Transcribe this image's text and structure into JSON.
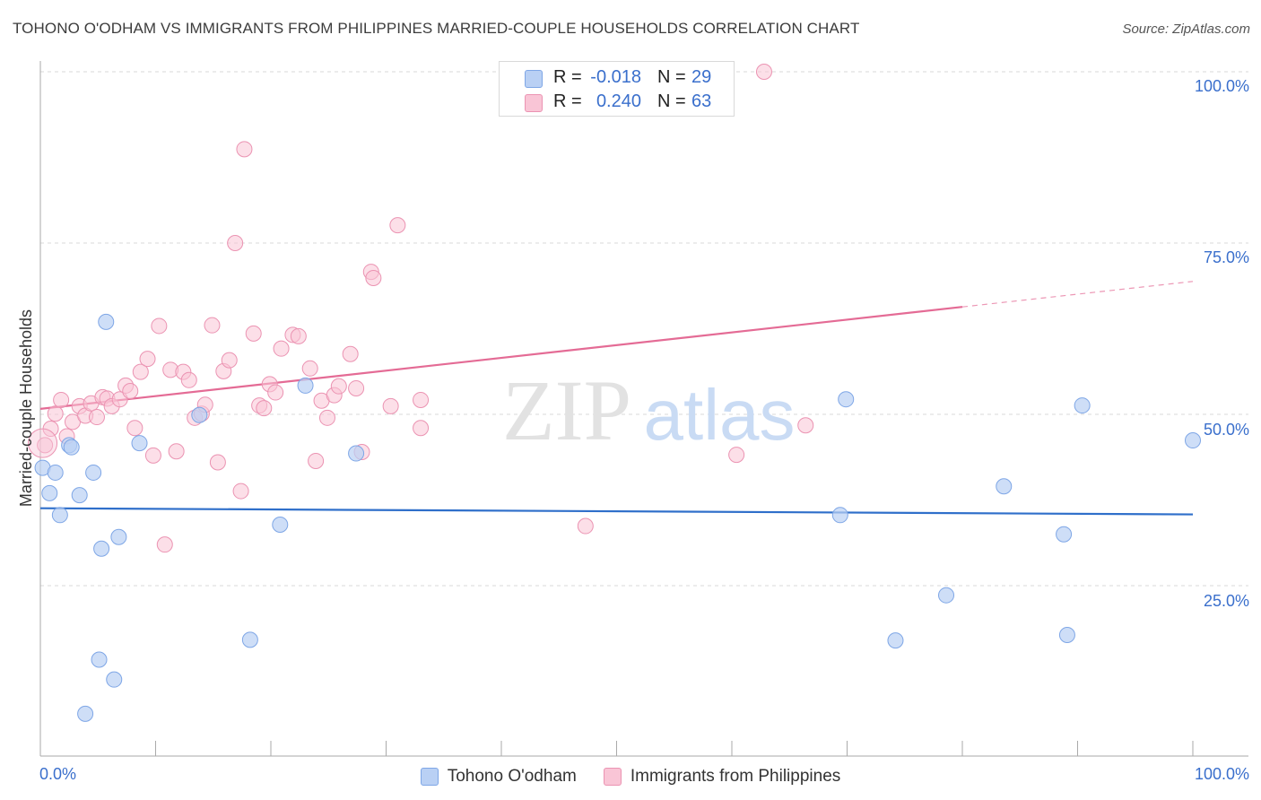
{
  "title": "TOHONO O'ODHAM VS IMMIGRANTS FROM PHILIPPINES MARRIED-COUPLE HOUSEHOLDS CORRELATION CHART",
  "source": "Source: ZipAtlas.com",
  "watermark": {
    "zip": "ZIP",
    "atlas": "atlas"
  },
  "stats": {
    "series1": {
      "r_label": "R =",
      "r_value": "-0.018",
      "n_label": "N =",
      "n_value": "29"
    },
    "series2": {
      "r_label": "R =",
      "r_value": "0.240",
      "n_label": "N =",
      "n_value": "63"
    }
  },
  "legend": {
    "series1": "Tohono O'odham",
    "series2": "Immigrants from Philippines"
  },
  "colors": {
    "series1_fill": "#b9d0f4",
    "series1_stroke": "#7ea6e6",
    "series1_line": "#2f6fca",
    "series2_fill": "#f9c5d6",
    "series2_stroke": "#eb93b2",
    "series2_line": "#e46b95",
    "tick_label": "#3a6fcc",
    "grid": "#d8d8d8"
  },
  "chart_data": {
    "type": "scatter",
    "title": "TOHONO O'ODHAM VS IMMIGRANTS FROM PHILIPPINES MARRIED-COUPLE HOUSEHOLDS CORRELATION CHART",
    "xlabel": "",
    "ylabel": "Married-couple Households",
    "xlim": [
      0,
      100
    ],
    "ylim": [
      0,
      102
    ],
    "x_tick_labels": [
      "0.0%",
      "100.0%"
    ],
    "y_ticks": [
      {
        "value": 25,
        "label": "25.0%"
      },
      {
        "value": 50,
        "label": "50.0%"
      },
      {
        "value": 75,
        "label": "75.0%"
      },
      {
        "value": 100,
        "label": "100.0%"
      }
    ],
    "series": [
      {
        "name": "Tohono O'odham",
        "trend": {
          "x0": 0,
          "y0": 36.3,
          "x1": 100,
          "y1": 35.4,
          "dashed_from": null
        },
        "points": [
          [
            0.2,
            42.2
          ],
          [
            0.8,
            38.5
          ],
          [
            1.3,
            41.5
          ],
          [
            1.7,
            35.3
          ],
          [
            3.4,
            38.2
          ],
          [
            2.5,
            45.5
          ],
          [
            2.7,
            45.2
          ],
          [
            4.6,
            41.5
          ],
          [
            5.7,
            63.5
          ],
          [
            5.3,
            30.4
          ],
          [
            6.8,
            32.1
          ],
          [
            8.6,
            45.8
          ],
          [
            13.8,
            49.9
          ],
          [
            18.2,
            17.1
          ],
          [
            20.8,
            33.9
          ],
          [
            23.0,
            54.2
          ],
          [
            27.4,
            44.3
          ],
          [
            5.1,
            14.2
          ],
          [
            6.4,
            11.3
          ],
          [
            3.9,
            6.3
          ],
          [
            69.4,
            35.3
          ],
          [
            69.9,
            52.2
          ],
          [
            74.2,
            17.0
          ],
          [
            78.6,
            23.6
          ],
          [
            83.6,
            39.5
          ],
          [
            88.8,
            32.5
          ],
          [
            89.1,
            17.8
          ],
          [
            90.4,
            51.3
          ],
          [
            100.0,
            46.2
          ]
        ]
      },
      {
        "name": "Immigrants from Philippines",
        "trend": {
          "x0": 0,
          "y0": 50.8,
          "x1": 100,
          "y1": 69.4,
          "dashed_from": 80
        },
        "points": [
          [
            0.4,
            45.5
          ],
          [
            0.9,
            47.9
          ],
          [
            1.3,
            50.1
          ],
          [
            1.8,
            52.1
          ],
          [
            2.3,
            46.8
          ],
          [
            2.8,
            48.9
          ],
          [
            3.4,
            51.2
          ],
          [
            3.9,
            49.8
          ],
          [
            4.4,
            51.6
          ],
          [
            4.9,
            49.6
          ],
          [
            5.4,
            52.5
          ],
          [
            5.8,
            52.3
          ],
          [
            6.2,
            51.2
          ],
          [
            6.9,
            52.2
          ],
          [
            7.4,
            54.2
          ],
          [
            7.8,
            53.4
          ],
          [
            8.2,
            48.0
          ],
          [
            8.7,
            56.2
          ],
          [
            9.3,
            58.1
          ],
          [
            9.8,
            44.0
          ],
          [
            10.3,
            62.9
          ],
          [
            10.8,
            31.0
          ],
          [
            11.3,
            56.5
          ],
          [
            11.8,
            44.6
          ],
          [
            12.4,
            56.2
          ],
          [
            12.9,
            55.0
          ],
          [
            13.4,
            49.5
          ],
          [
            14.0,
            50.1
          ],
          [
            14.3,
            51.4
          ],
          [
            14.9,
            63.0
          ],
          [
            15.4,
            43.0
          ],
          [
            15.9,
            56.3
          ],
          [
            16.4,
            57.9
          ],
          [
            16.9,
            75.0
          ],
          [
            17.4,
            38.8
          ],
          [
            17.7,
            88.7
          ],
          [
            18.5,
            61.8
          ],
          [
            19.0,
            51.3
          ],
          [
            19.4,
            50.9
          ],
          [
            19.9,
            54.4
          ],
          [
            20.4,
            53.2
          ],
          [
            20.9,
            59.6
          ],
          [
            21.9,
            61.6
          ],
          [
            22.4,
            61.4
          ],
          [
            23.4,
            56.7
          ],
          [
            23.9,
            43.2
          ],
          [
            24.4,
            52.0
          ],
          [
            24.9,
            49.5
          ],
          [
            25.5,
            52.8
          ],
          [
            25.9,
            54.1
          ],
          [
            26.9,
            58.8
          ],
          [
            27.4,
            53.8
          ],
          [
            27.9,
            44.5
          ],
          [
            28.7,
            70.8
          ],
          [
            28.9,
            69.9
          ],
          [
            30.4,
            51.2
          ],
          [
            31.0,
            77.6
          ],
          [
            33.0,
            52.1
          ],
          [
            33.0,
            48.0
          ],
          [
            47.3,
            33.7
          ],
          [
            60.4,
            44.1
          ],
          [
            62.8,
            100.0
          ],
          [
            66.4,
            48.4
          ]
        ]
      }
    ]
  }
}
